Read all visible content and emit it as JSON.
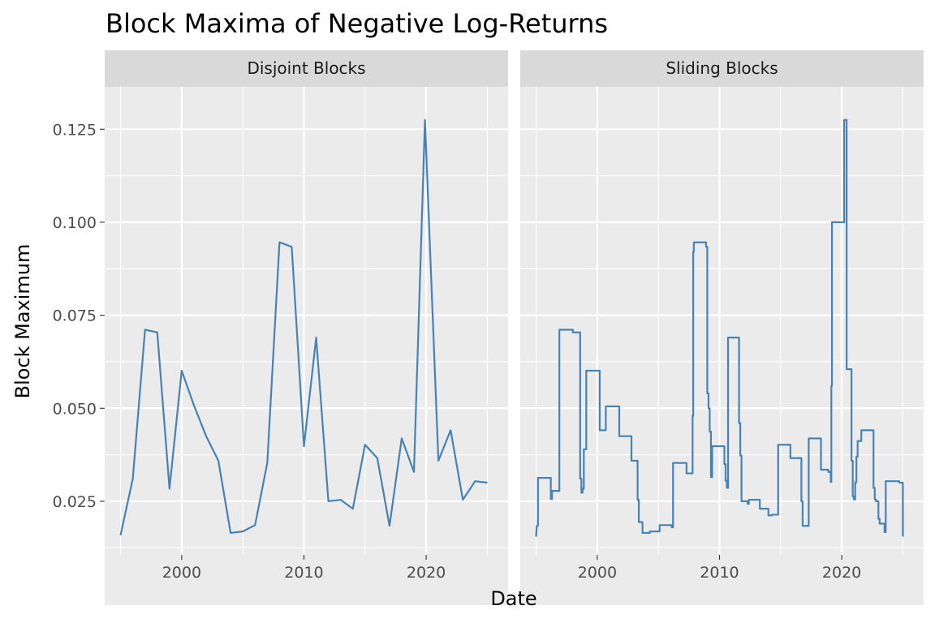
{
  "chart_data": {
    "type": "line",
    "title": "Block Maxima of Negative Log-Returns",
    "xlabel": "Date",
    "ylabel": "Block Maximum",
    "xlim": [
      1993.7,
      2026.7
    ],
    "ylim": [
      0.0106,
      0.1364
    ],
    "x_ticks": [
      2000,
      2010,
      2020
    ],
    "x_tick_labels": [
      "2000",
      "2010",
      "2020"
    ],
    "y_ticks": [
      0.025,
      0.05,
      0.075,
      0.1,
      0.125
    ],
    "y_tick_labels": [
      "0.025",
      "0.050",
      "0.075",
      "0.100",
      "0.125"
    ],
    "grid": true,
    "line_color": "#4682b4",
    "panel_background": "#ebebeb",
    "strip_background": "#d9d9d9",
    "facets": [
      {
        "label": "Disjoint Blocks",
        "x": [
          1995.0,
          1996.0,
          1997.0,
          1998.0,
          1999.0,
          2000.0,
          2001.0,
          2002.0,
          2003.0,
          2004.0,
          2005.0,
          2006.0,
          2007.0,
          2008.0,
          2009.0,
          2010.0,
          2011.0,
          2012.0,
          2013.0,
          2014.0,
          2015.0,
          2016.0,
          2017.0,
          2018.0,
          2019.0,
          2019.9,
          2021.0,
          2022.0,
          2023.0,
          2024.0,
          2025.0
        ],
        "y": [
          0.0159,
          0.0311,
          0.0711,
          0.0704,
          0.0284,
          0.0601,
          0.0508,
          0.0425,
          0.0359,
          0.0165,
          0.0169,
          0.0186,
          0.0353,
          0.0946,
          0.0934,
          0.0398,
          0.069,
          0.025,
          0.0254,
          0.023,
          0.0402,
          0.0366,
          0.0184,
          0.0419,
          0.0329,
          0.1275,
          0.0359,
          0.0441,
          0.0254,
          0.0304,
          0.03
        ]
      },
      {
        "label": "Sliding Blocks",
        "x": [
          1995.0,
          1995.05,
          1995.1,
          1995.15,
          1995.15,
          1996.2,
          1996.2,
          1996.3,
          1996.3,
          1996.4,
          1996.4,
          1996.9,
          1996.9,
          1998.0,
          1998.0,
          1998.6,
          1998.6,
          1998.7,
          1998.7,
          1998.8,
          1998.8,
          1998.9,
          1998.9,
          1999.1,
          1999.1,
          1999.9,
          1999.9,
          2000.2,
          2000.2,
          2000.7,
          2000.7,
          2001.8,
          2001.8,
          2002.8,
          2002.8,
          2003.3,
          2003.3,
          2003.4,
          2003.4,
          2003.7,
          2003.7,
          2004.3,
          2004.3,
          2005.1,
          2005.1,
          2006.1,
          2006.1,
          2006.2,
          2006.2,
          2007.3,
          2007.3,
          2007.8,
          2007.8,
          2007.85,
          2007.85,
          2007.9,
          2007.9,
          2008.9,
          2008.9,
          2009.0,
          2009.0,
          2009.1,
          2009.1,
          2009.2,
          2009.2,
          2009.3,
          2009.3,
          2009.4,
          2009.4,
          2010.4,
          2010.4,
          2010.5,
          2010.5,
          2010.6,
          2010.6,
          2010.7,
          2010.7,
          2011.6,
          2011.6,
          2011.7,
          2011.7,
          2011.8,
          2011.8,
          2012.3,
          2012.3,
          2012.4,
          2012.4,
          2013.3,
          2013.3,
          2014.0,
          2014.0,
          2014.3,
          2014.3,
          2014.8,
          2014.8,
          2015.8,
          2015.8,
          2016.7,
          2016.7,
          2016.8,
          2016.8,
          2017.3,
          2017.3,
          2018.3,
          2018.3,
          2018.9,
          2018.9,
          2019.1,
          2019.1,
          2019.15,
          2019.15,
          2019.2,
          2019.2,
          2020.2,
          2020.2,
          2020.4,
          2020.4,
          2020.8,
          2020.8,
          2020.9,
          2020.9,
          2021.0,
          2021.0,
          2021.1,
          2021.1,
          2021.2,
          2021.2,
          2021.3,
          2021.3,
          2021.6,
          2021.6,
          2022.6,
          2022.6,
          2022.7,
          2022.7,
          2022.8,
          2022.8,
          2023.0,
          2023.0,
          2023.1,
          2023.1,
          2023.5,
          2023.5,
          2023.6,
          2023.6,
          2024.7,
          2024.7,
          2025.0,
          2025.0
        ],
        "y": [
          0.0155,
          0.0184,
          0.0184,
          0.0184,
          0.0313,
          0.0313,
          0.0256,
          0.0256,
          0.0278,
          0.0278,
          0.0278,
          0.0278,
          0.0711,
          0.0711,
          0.0704,
          0.0704,
          0.0311,
          0.0311,
          0.0273,
          0.0273,
          0.0284,
          0.0284,
          0.039,
          0.039,
          0.0601,
          0.0601,
          0.0601,
          0.0601,
          0.0441,
          0.0441,
          0.0505,
          0.0505,
          0.0425,
          0.0425,
          0.0359,
          0.0359,
          0.0254,
          0.0254,
          0.0194,
          0.0194,
          0.0165,
          0.0165,
          0.0169,
          0.0169,
          0.0186,
          0.0186,
          0.018,
          0.018,
          0.0353,
          0.0353,
          0.0325,
          0.0325,
          0.048,
          0.048,
          0.092,
          0.092,
          0.0946,
          0.0946,
          0.0934,
          0.0934,
          0.054,
          0.054,
          0.05,
          0.05,
          0.0437,
          0.0437,
          0.0315,
          0.0315,
          0.0398,
          0.0398,
          0.035,
          0.035,
          0.0305,
          0.0305,
          0.0286,
          0.0286,
          0.069,
          0.069,
          0.046,
          0.046,
          0.0373,
          0.0373,
          0.025,
          0.025,
          0.0243,
          0.0243,
          0.0254,
          0.0254,
          0.023,
          0.023,
          0.0212,
          0.0212,
          0.0214,
          0.0214,
          0.0402,
          0.0402,
          0.0366,
          0.0366,
          0.025,
          0.025,
          0.0184,
          0.0184,
          0.0419,
          0.0419,
          0.0335,
          0.0335,
          0.0329,
          0.0329,
          0.0302,
          0.0302,
          0.056,
          0.056,
          0.1,
          0.1,
          0.1275,
          0.1275,
          0.0605,
          0.0605,
          0.0359,
          0.0359,
          0.0263,
          0.0263,
          0.0255,
          0.0255,
          0.0301,
          0.0301,
          0.037,
          0.037,
          0.0412,
          0.0412,
          0.0441,
          0.0441,
          0.0286,
          0.0286,
          0.0255,
          0.0255,
          0.025,
          0.025,
          0.0203,
          0.0203,
          0.019,
          0.019,
          0.0167,
          0.0167,
          0.0304,
          0.0304,
          0.03,
          0.03,
          0.0155
        ]
      }
    ]
  }
}
